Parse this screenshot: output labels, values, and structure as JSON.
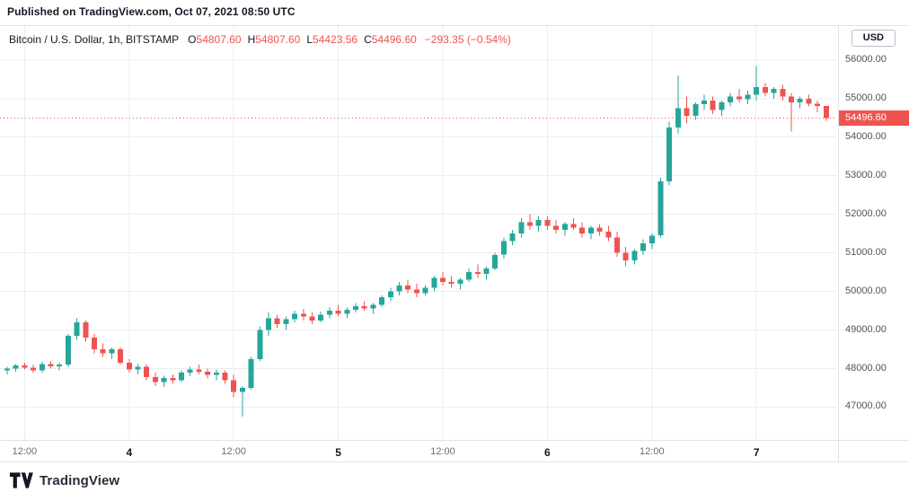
{
  "published_bar": {
    "text": "Published on TradingView.com, Oct 07, 2021 08:50 UTC"
  },
  "toolbar": {
    "currency_button": "USD"
  },
  "legend": {
    "symbol": "Bitcoin / U.S. Dollar, 1h, BITSTAMP",
    "ohlc": [
      {
        "label": "O",
        "value": "54807.60"
      },
      {
        "label": "H",
        "value": "54807.60"
      },
      {
        "label": "L",
        "value": "54423.56"
      },
      {
        "label": "C",
        "value": "54496.60"
      }
    ],
    "change": "−293.35 (−0.54%)"
  },
  "price_axis": {
    "labels": [
      "47000.00",
      "48000.00",
      "49000.00",
      "50000.00",
      "51000.00",
      "52000.00",
      "53000.00",
      "54000.00",
      "55000.00",
      "56000.00"
    ],
    "last_price_label": "54496.60"
  },
  "footer": {
    "brand": "TradingView"
  },
  "colors": {
    "up": "#26a69a",
    "down": "#ef5350",
    "last_price": "#ef5350",
    "grid": "#ebedf0",
    "axis_text": "#50535e",
    "text": "#131722"
  },
  "chart_data": {
    "type": "candlestick",
    "title": "Bitcoin / U.S. Dollar, 1h, BITSTAMP",
    "exchange": "BITSTAMP",
    "interval": "1h",
    "start_time": "Oct 3, 2021 10:00 UTC",
    "interval_hours": 1,
    "ylim": [
      46150,
      56880
    ],
    "y_ticks": [
      47000,
      48000,
      49000,
      50000,
      51000,
      52000,
      53000,
      54000,
      55000,
      56000
    ],
    "last_price": 54496.6,
    "change": -293.35,
    "change_pct": -0.54,
    "time_ticks": [
      {
        "index": 2,
        "label": "12:00",
        "major": false
      },
      {
        "index": 14,
        "label": "4",
        "major": true
      },
      {
        "index": 26,
        "label": "12:00",
        "major": false
      },
      {
        "index": 38,
        "label": "5",
        "major": true
      },
      {
        "index": 50,
        "label": "12:00",
        "major": false
      },
      {
        "index": 62,
        "label": "6",
        "major": true
      },
      {
        "index": 74,
        "label": "12:00",
        "major": false
      },
      {
        "index": 86,
        "label": "7",
        "major": true
      }
    ],
    "candles": [
      [
        47950,
        48050,
        47850,
        48000
      ],
      [
        48000,
        48120,
        47920,
        48080
      ],
      [
        48080,
        48150,
        47980,
        48020
      ],
      [
        48020,
        48100,
        47900,
        47950
      ],
      [
        47950,
        48180,
        47900,
        48120
      ],
      [
        48120,
        48200,
        48000,
        48060
      ],
      [
        48060,
        48150,
        47950,
        48100
      ],
      [
        48100,
        48900,
        48050,
        48850
      ],
      [
        48850,
        49300,
        48750,
        49200
      ],
      [
        49200,
        49250,
        48700,
        48800
      ],
      [
        48800,
        48900,
        48400,
        48500
      ],
      [
        48500,
        48650,
        48300,
        48400
      ],
      [
        48400,
        48550,
        48250,
        48500
      ],
      [
        48500,
        48560,
        48100,
        48150
      ],
      [
        48150,
        48250,
        47900,
        47980
      ],
      [
        47980,
        48120,
        47850,
        48050
      ],
      [
        48050,
        48100,
        47700,
        47780
      ],
      [
        47780,
        47900,
        47550,
        47650
      ],
      [
        47650,
        47820,
        47520,
        47760
      ],
      [
        47760,
        47850,
        47600,
        47700
      ],
      [
        47700,
        47950,
        47650,
        47900
      ],
      [
        47900,
        48050,
        47800,
        47980
      ],
      [
        47980,
        48100,
        47850,
        47920
      ],
      [
        47920,
        48000,
        47750,
        47840
      ],
      [
        47840,
        47980,
        47700,
        47900
      ],
      [
        47900,
        47950,
        47600,
        47700
      ],
      [
        47700,
        47850,
        47250,
        47400
      ],
      [
        47400,
        47550,
        46750,
        47500
      ],
      [
        47500,
        48300,
        47450,
        48250
      ],
      [
        48250,
        49100,
        48200,
        49000
      ],
      [
        49000,
        49450,
        48850,
        49300
      ],
      [
        49300,
        49400,
        49050,
        49150
      ],
      [
        49150,
        49350,
        49000,
        49280
      ],
      [
        49280,
        49500,
        49200,
        49420
      ],
      [
        49420,
        49550,
        49250,
        49350
      ],
      [
        49350,
        49450,
        49150,
        49250
      ],
      [
        49250,
        49480,
        49200,
        49400
      ],
      [
        49400,
        49600,
        49300,
        49500
      ],
      [
        49500,
        49650,
        49350,
        49420
      ],
      [
        49420,
        49580,
        49300,
        49520
      ],
      [
        49520,
        49700,
        49450,
        49620
      ],
      [
        49620,
        49750,
        49500,
        49560
      ],
      [
        49560,
        49700,
        49420,
        49650
      ],
      [
        49650,
        49900,
        49600,
        49850
      ],
      [
        49850,
        50100,
        49750,
        50000
      ],
      [
        50000,
        50250,
        49900,
        50150
      ],
      [
        50150,
        50300,
        49950,
        50050
      ],
      [
        50050,
        50200,
        49850,
        49950
      ],
      [
        49950,
        50150,
        49900,
        50100
      ],
      [
        50100,
        50400,
        50000,
        50350
      ],
      [
        50350,
        50500,
        50150,
        50250
      ],
      [
        50250,
        50400,
        50100,
        50200
      ],
      [
        50200,
        50350,
        50050,
        50300
      ],
      [
        50300,
        50600,
        50250,
        50500
      ],
      [
        50500,
        50700,
        50350,
        50450
      ],
      [
        50450,
        50650,
        50300,
        50600
      ],
      [
        50600,
        51000,
        50550,
        50950
      ],
      [
        50950,
        51400,
        50850,
        51300
      ],
      [
        51300,
        51600,
        51200,
        51500
      ],
      [
        51500,
        51900,
        51400,
        51800
      ],
      [
        51800,
        52000,
        51600,
        51700
      ],
      [
        51700,
        51950,
        51550,
        51850
      ],
      [
        51850,
        51950,
        51600,
        51700
      ],
      [
        51700,
        51850,
        51500,
        51600
      ],
      [
        51600,
        51800,
        51450,
        51750
      ],
      [
        51750,
        51900,
        51600,
        51650
      ],
      [
        51650,
        51800,
        51400,
        51500
      ],
      [
        51500,
        51700,
        51350,
        51650
      ],
      [
        51650,
        51750,
        51450,
        51550
      ],
      [
        51550,
        51700,
        51300,
        51400
      ],
      [
        51400,
        51550,
        50900,
        51000
      ],
      [
        51000,
        51150,
        50650,
        50800
      ],
      [
        50800,
        51100,
        50700,
        51050
      ],
      [
        51050,
        51350,
        50950,
        51250
      ],
      [
        51250,
        51500,
        51100,
        51450
      ],
      [
        51450,
        52950,
        51400,
        52850
      ],
      [
        52850,
        54400,
        52750,
        54250
      ],
      [
        54250,
        55600,
        54100,
        54750
      ],
      [
        54750,
        55050,
        54350,
        54550
      ],
      [
        54550,
        54900,
        54450,
        54850
      ],
      [
        54850,
        55100,
        54700,
        54950
      ],
      [
        54950,
        55050,
        54600,
        54700
      ],
      [
        54700,
        54950,
        54550,
        54900
      ],
      [
        54900,
        55150,
        54800,
        55050
      ],
      [
        55050,
        55250,
        54900,
        54980
      ],
      [
        54980,
        55200,
        54850,
        55100
      ],
      [
        55100,
        55850,
        54950,
        55300
      ],
      [
        55300,
        55400,
        55050,
        55150
      ],
      [
        55150,
        55300,
        55000,
        55250
      ],
      [
        55250,
        55350,
        54950,
        55050
      ],
      [
        55050,
        55150,
        54150,
        54900
      ],
      [
        54900,
        55050,
        54750,
        54990
      ],
      [
        54990,
        55100,
        54800,
        54870
      ],
      [
        54870,
        54950,
        54650,
        54810
      ],
      [
        54807.6,
        54807.6,
        54423.56,
        54496.6
      ]
    ]
  }
}
